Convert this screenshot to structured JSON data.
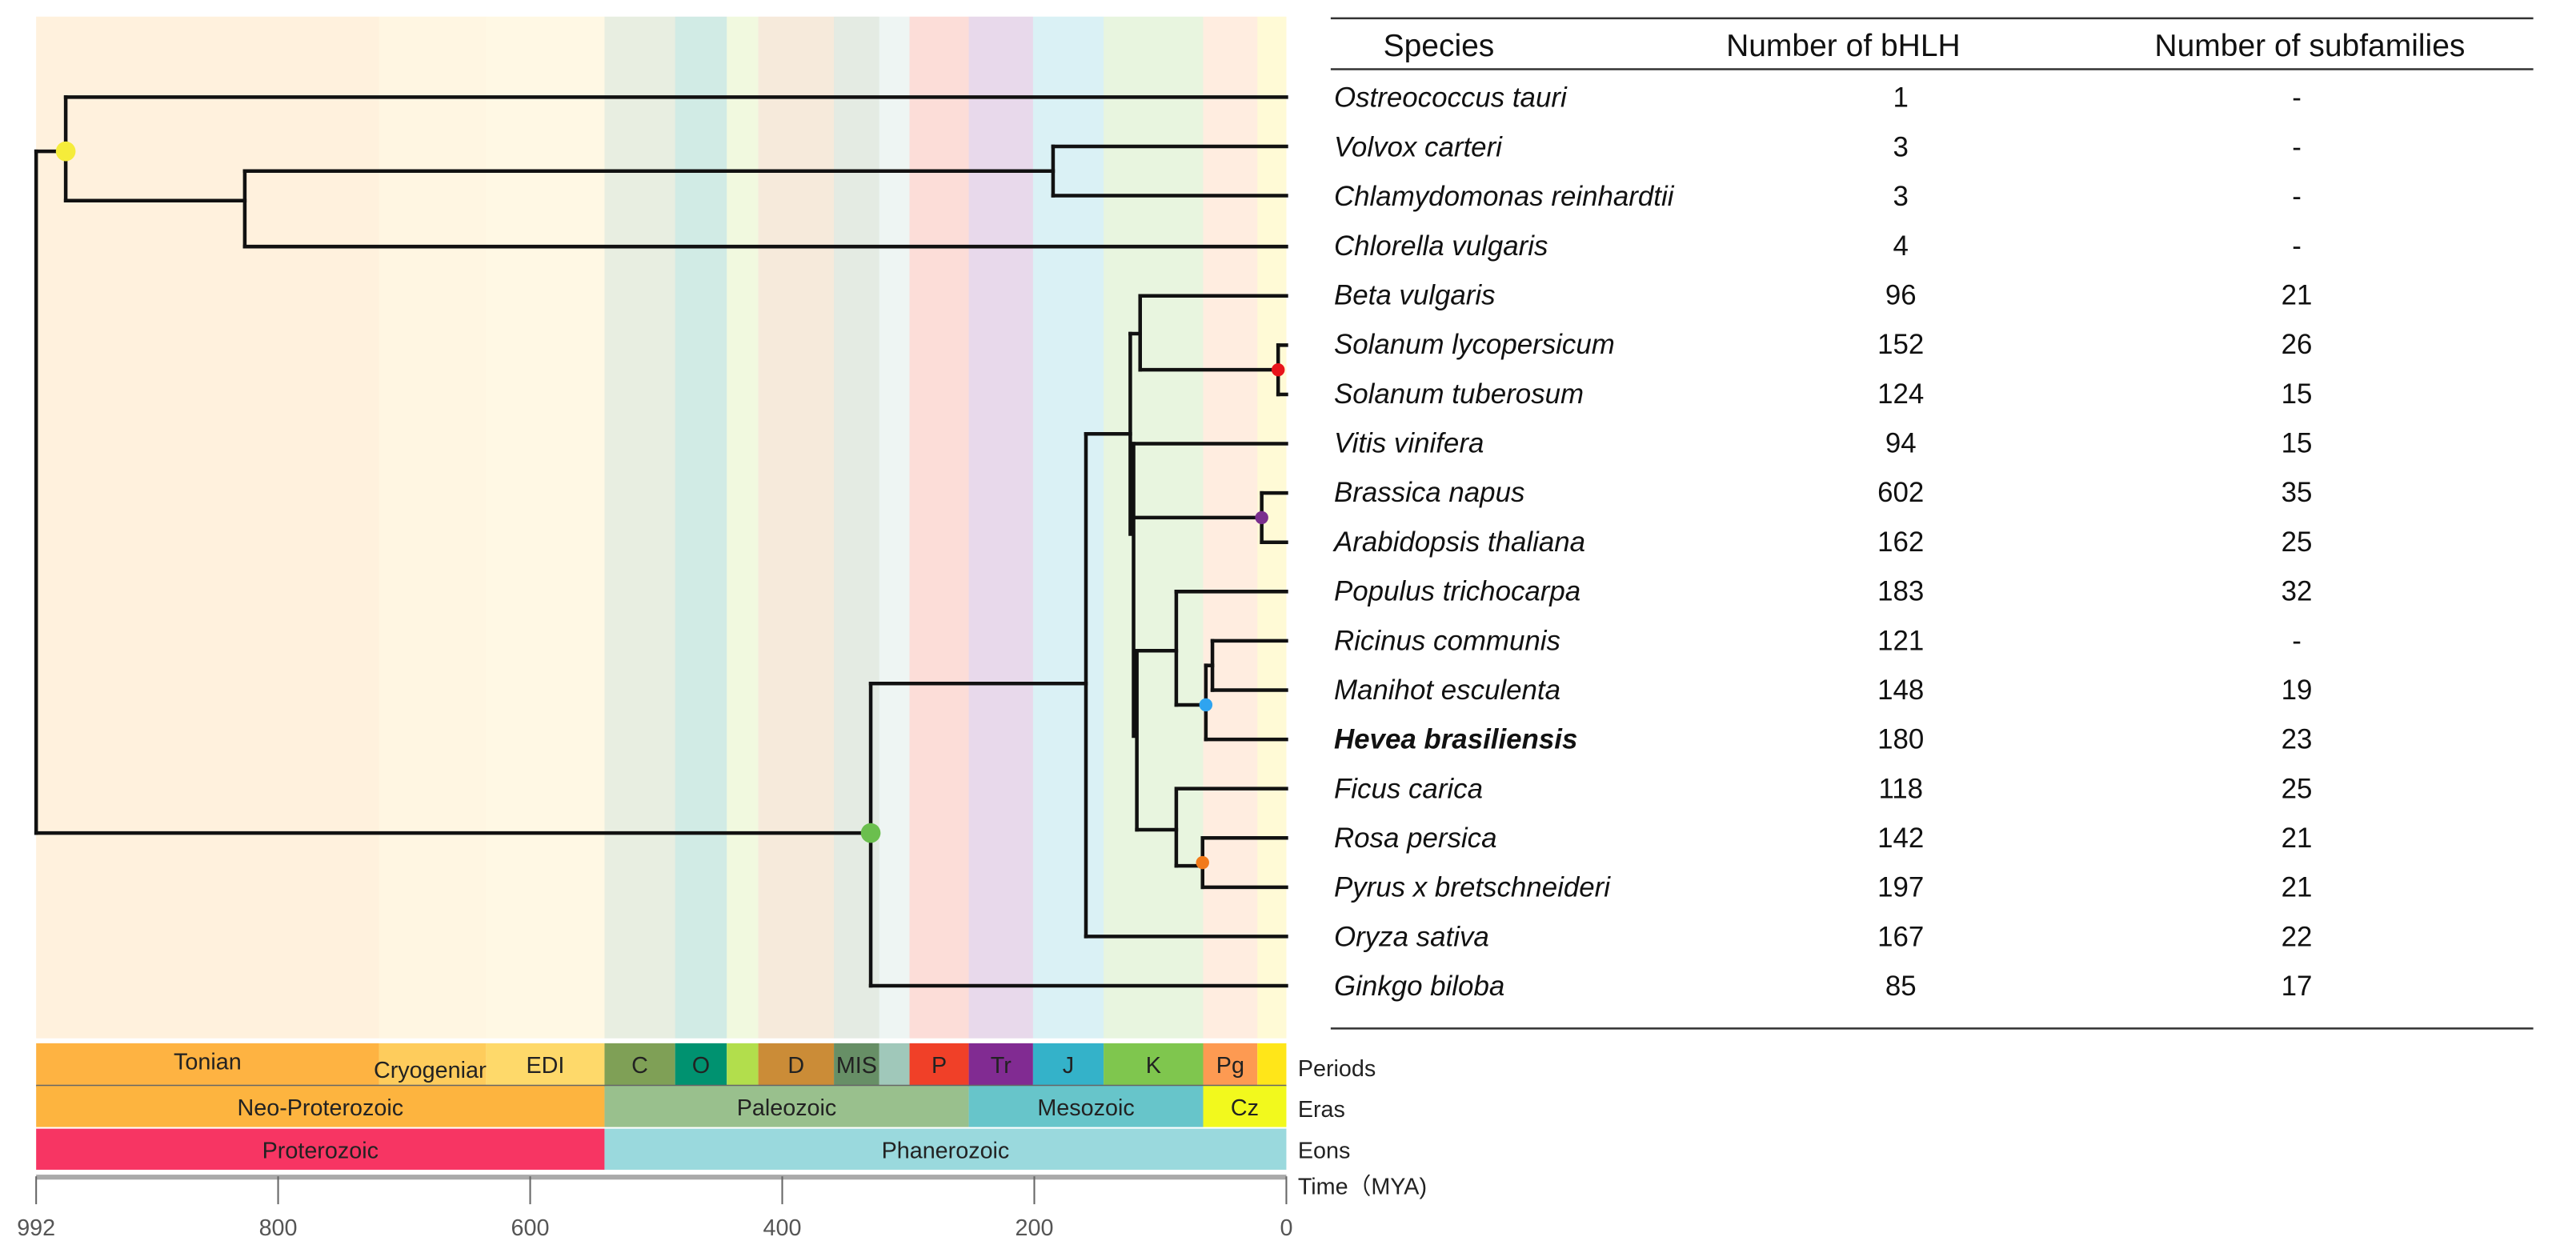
{
  "axis": {
    "min_mya": 0,
    "max_mya": 992,
    "ticks": [
      992,
      800,
      600,
      400,
      200,
      0
    ],
    "title": "Time（MYA)"
  },
  "row_labels": {
    "periods": "Periods",
    "eras": "Eras",
    "eons": "Eons"
  },
  "periods": [
    {
      "label": "Tonian",
      "start": 992,
      "end": 720,
      "color": "#FEB342"
    },
    {
      "label": "Cryogenian",
      "start": 720,
      "end": 635,
      "color": "#FECC5C"
    },
    {
      "label": "EDI",
      "start": 635,
      "end": 541,
      "color": "#FED96A"
    },
    {
      "label": "C",
      "start": 541,
      "end": 485,
      "color": "#7FA056"
    },
    {
      "label": "O",
      "start": 485,
      "end": 444,
      "color": "#009270"
    },
    {
      "label": "",
      "start": 444,
      "end": 419,
      "color": "#B2DE4C"
    },
    {
      "label": "D",
      "start": 419,
      "end": 359,
      "color": "#CB8C37"
    },
    {
      "label": "MIS",
      "start": 359,
      "end": 323,
      "color": "#678F66"
    },
    {
      "label": "",
      "start": 323,
      "end": 299,
      "color": "#A0C8BA"
    },
    {
      "label": "P",
      "start": 299,
      "end": 252,
      "color": "#F04028"
    },
    {
      "label": "Tr",
      "start": 252,
      "end": 201,
      "color": "#812B92"
    },
    {
      "label": "J",
      "start": 201,
      "end": 145,
      "color": "#34B2C9"
    },
    {
      "label": "K",
      "start": 145,
      "end": 66,
      "color": "#7FC64E"
    },
    {
      "label": "Pg",
      "start": 66,
      "end": 23,
      "color": "#FD9A52"
    },
    {
      "label": "",
      "start": 23,
      "end": 0,
      "color": "#FFE619"
    }
  ],
  "eras": [
    {
      "label": "Neo-Proterozoic",
      "start": 992,
      "end": 541,
      "color": "#FDB43F"
    },
    {
      "label": "Paleozoic",
      "start": 541,
      "end": 252,
      "color": "#99C08D"
    },
    {
      "label": "Mesozoic",
      "start": 252,
      "end": 66,
      "color": "#67C5CA"
    },
    {
      "label": "Cz",
      "start": 66,
      "end": 0,
      "color": "#F2F91D"
    }
  ],
  "eons": [
    {
      "label": "Proterozoic",
      "start": 992,
      "end": 541,
      "color": "#F73563"
    },
    {
      "label": "Phanerozoic",
      "start": 541,
      "end": 0,
      "color": "#9AD9DD"
    }
  ],
  "node_colors": {
    "root_chlorophyta": "#F5EC3A",
    "angiosperm_gymnosperm": "#6BBF4E",
    "solanum": "#E8141B",
    "brassicaceae": "#7A2E8E",
    "euphorbiaceae": "#2FA4F0",
    "rosaceae": "#F27A1A"
  },
  "table": {
    "headers": {
      "species": "Species",
      "bhlh": "Number of bHLH",
      "subfamilies": "Number of subfamilies"
    },
    "rows": [
      {
        "species": "Ostreococcus tauri",
        "bhlh": "1",
        "subfamilies": "-",
        "bold": false
      },
      {
        "species": "Volvox carteri",
        "bhlh": "3",
        "subfamilies": "-",
        "bold": false
      },
      {
        "species": "Chlamydomonas reinhardtii",
        "bhlh": "3",
        "subfamilies": "-",
        "bold": false
      },
      {
        "species": "Chlorella vulgaris",
        "bhlh": "4",
        "subfamilies": "-",
        "bold": false
      },
      {
        "species": "Beta vulgaris",
        "bhlh": "96",
        "subfamilies": "21",
        "bold": false
      },
      {
        "species": "Solanum lycopersicum",
        "bhlh": "152",
        "subfamilies": "26",
        "bold": false
      },
      {
        "species": "Solanum tuberosum",
        "bhlh": "124",
        "subfamilies": "15",
        "bold": false
      },
      {
        "species": "Vitis vinifera",
        "bhlh": "94",
        "subfamilies": "15",
        "bold": false
      },
      {
        "species": "Brassica napus",
        "bhlh": "602",
        "subfamilies": "35",
        "bold": false
      },
      {
        "species": "Arabidopsis thaliana",
        "bhlh": "162",
        "subfamilies": "25",
        "bold": false
      },
      {
        "species": "Populus trichocarpa",
        "bhlh": "183",
        "subfamilies": "32",
        "bold": false
      },
      {
        "species": "Ricinus communis",
        "bhlh": "121",
        "subfamilies": "-",
        "bold": false
      },
      {
        "species": "Manihot esculenta",
        "bhlh": "148",
        "subfamilies": "19",
        "bold": false
      },
      {
        "species": "Hevea brasiliensis",
        "bhlh": "180",
        "subfamilies": "23",
        "bold": true
      },
      {
        "species": "Ficus carica",
        "bhlh": "118",
        "subfamilies": "25",
        "bold": false
      },
      {
        "species": "Rosa persica",
        "bhlh": "142",
        "subfamilies": "21",
        "bold": false
      },
      {
        "species": "Pyrus x bretschneideri",
        "bhlh": "197",
        "subfamilies": "21",
        "bold": false
      },
      {
        "species": "Oryza sativa",
        "bhlh": "167",
        "subfamilies": "22",
        "bold": false
      },
      {
        "species": "Ginkgo biloba",
        "bhlh": "85",
        "subfamilies": "17",
        "bold": false
      }
    ]
  }
}
